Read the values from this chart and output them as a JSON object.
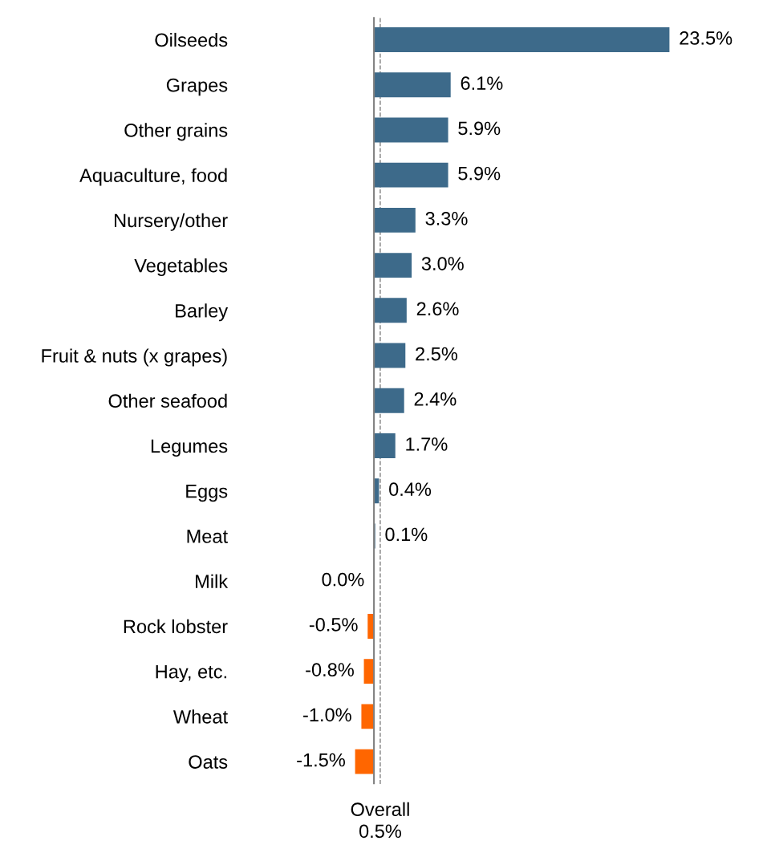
{
  "chart_data": {
    "type": "bar",
    "orientation": "horizontal",
    "categories": [
      "Oilseeds",
      "Grapes",
      "Other grains",
      "Aquaculture, food",
      "Nursery/other",
      "Vegetables",
      "Barley",
      "Fruit & nuts (x grapes)",
      "Other seafood",
      "Legumes",
      "Eggs",
      "Meat",
      "Milk",
      "Rock lobster",
      "Hay, etc.",
      "Wheat",
      "Oats"
    ],
    "values": [
      23.5,
      6.1,
      5.9,
      5.9,
      3.3,
      3.0,
      2.6,
      2.5,
      2.4,
      1.7,
      0.4,
      0.1,
      0.0,
      -0.5,
      -0.8,
      -1.0,
      -1.5
    ],
    "colors": [
      "#3d6a8a",
      "#3d6a8a",
      "#3d6a8a",
      "#3d6a8a",
      "#3d6a8a",
      "#3d6a8a",
      "#3d6a8a",
      "#3d6a8a",
      "#3d6a8a",
      "#3d6a8a",
      "#3d6a8a",
      "#3d6a8a",
      "#3d6a8a",
      "#ff6600",
      "#ff6600",
      "#ff6600",
      "#ff6600"
    ],
    "value_labels": [
      "23.5%",
      "6.1%",
      "5.9%",
      "5.9%",
      "3.3%",
      "3.0%",
      "2.6%",
      "2.5%",
      "2.4%",
      "1.7%",
      "0.4%",
      "0.1%",
      "0.0%",
      "-0.5%",
      "-0.8%",
      "-1.0%",
      "-1.5%"
    ],
    "tick_labels": "y",
    "grid": false,
    "legend": false,
    "ref_lines": [
      {
        "axis": "x",
        "value": 0.5,
        "label": "Overall\n0.5%",
        "color": "#808080",
        "line_style": "dashed"
      }
    ]
  }
}
